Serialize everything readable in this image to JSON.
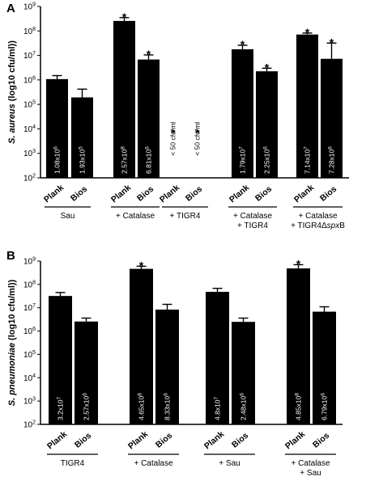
{
  "chart_data": [
    {
      "type": "bar",
      "panel": "A",
      "ylabel_italic": "S. aureus",
      "ylabel_rest": " (log10 cfu/ml))",
      "yscale": "log",
      "ylim": [
        100,
        1000000000
      ],
      "yticks": [
        {
          "base": "10",
          "exp": "2"
        },
        {
          "base": "10",
          "exp": "3"
        },
        {
          "base": "10",
          "exp": "4"
        },
        {
          "base": "10",
          "exp": "5"
        },
        {
          "base": "10",
          "exp": "6"
        },
        {
          "base": "10",
          "exp": "7"
        },
        {
          "base": "10",
          "exp": "8"
        },
        {
          "base": "10",
          "exp": "9"
        }
      ],
      "categories": [
        "Plank",
        "Bios",
        "Plank",
        "Bios",
        "Plank",
        "Bios",
        "Plank",
        "Bios",
        "Plank",
        "Bios"
      ],
      "values": [
        1080000,
        193000,
        257000000,
        6810000,
        null,
        null,
        17900000,
        2250000,
        71400000,
        7280000
      ],
      "error_upper": [
        1500000,
        420000,
        350000000,
        10500000,
        null,
        null,
        26000000,
        3000000,
        82000000,
        32000000
      ],
      "bar_labels": [
        "1.08x10^6",
        "1.93x10^5",
        "2.57x10^8",
        "6.81x10^6",
        "< 50 cfu/ml",
        "< 50 cfu/ml",
        "1.79x10^7",
        "2.25x10^6",
        "7.14x10^7",
        "7.28x10^6"
      ],
      "significant": [
        false,
        false,
        true,
        true,
        true,
        true,
        true,
        true,
        true,
        true
      ],
      "star": "*",
      "groups": [
        {
          "lines": [
            "Sau"
          ]
        },
        {
          "lines": [
            "+ Catalase"
          ]
        },
        {
          "lines": [
            "+ TIGR4"
          ]
        },
        {
          "lines": [
            "+ Catalase",
            "+ TIGR4"
          ]
        },
        {
          "lines": [
            "+ Catalase",
            "+ TIGR4ΔspxB"
          ]
        }
      ]
    },
    {
      "type": "bar",
      "panel": "B",
      "ylabel_italic": "S. pneumoniae",
      "ylabel_rest": " (log10 cfu/ml))",
      "yscale": "log",
      "ylim": [
        100,
        1000000000
      ],
      "yticks": [
        {
          "base": "10",
          "exp": "2"
        },
        {
          "base": "10",
          "exp": "3"
        },
        {
          "base": "10",
          "exp": "4"
        },
        {
          "base": "10",
          "exp": "5"
        },
        {
          "base": "10",
          "exp": "6"
        },
        {
          "base": "10",
          "exp": "7"
        },
        {
          "base": "10",
          "exp": "8"
        },
        {
          "base": "10",
          "exp": "9"
        }
      ],
      "categories": [
        "Plank",
        "Bios",
        "Plank",
        "Bios",
        "Plank",
        "Bios",
        "Plank",
        "Bios"
      ],
      "values": [
        32000000,
        2570000,
        465000000,
        8330000,
        48000000,
        2480000,
        485000000,
        6790000
      ],
      "error_upper": [
        45000000,
        3600000,
        600000000,
        14000000,
        68000000,
        3600000,
        700000000,
        11000000
      ],
      "bar_labels": [
        "3.2x10^7",
        "2.57x10^6",
        "4.65x10^8",
        "8.33x10^6",
        "4.8x10^7",
        "2.48x10^6",
        "4.85x10^8",
        "6.79x10^6"
      ],
      "significant": [
        false,
        false,
        true,
        false,
        false,
        false,
        true,
        false
      ],
      "star": "*",
      "groups": [
        {
          "lines": [
            "TIGR4"
          ]
        },
        {
          "lines": [
            "+ Catalase"
          ]
        },
        {
          "lines": [
            "+ Sau"
          ]
        },
        {
          "lines": [
            "+ Catalase",
            "+ Sau"
          ]
        }
      ]
    }
  ]
}
